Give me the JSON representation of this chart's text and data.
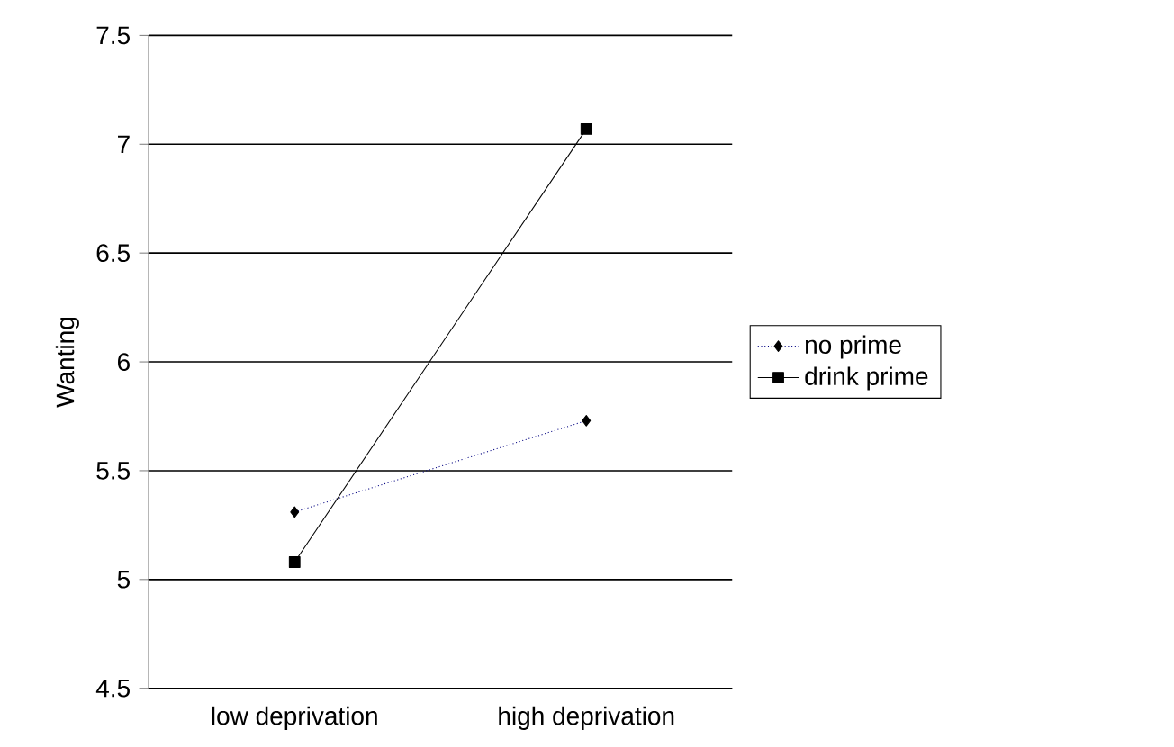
{
  "chart_data": {
    "type": "line",
    "ylabel": "Wanting",
    "categories": [
      "low deprivation",
      "high deprivation"
    ],
    "series": [
      {
        "name": "no prime",
        "color": "#000080",
        "values": [
          5.31,
          5.73
        ],
        "marker": "diamond",
        "line_style": "dotted"
      },
      {
        "name": "drink prime",
        "color": "#000000",
        "values": [
          5.08,
          7.07
        ],
        "marker": "square",
        "line_style": "solid"
      }
    ],
    "ylim": [
      4.5,
      7.5
    ],
    "yticks": [
      4.5,
      5,
      5.5,
      6,
      6.5,
      7,
      7.5
    ],
    "grid": "y",
    "legend": "right"
  }
}
